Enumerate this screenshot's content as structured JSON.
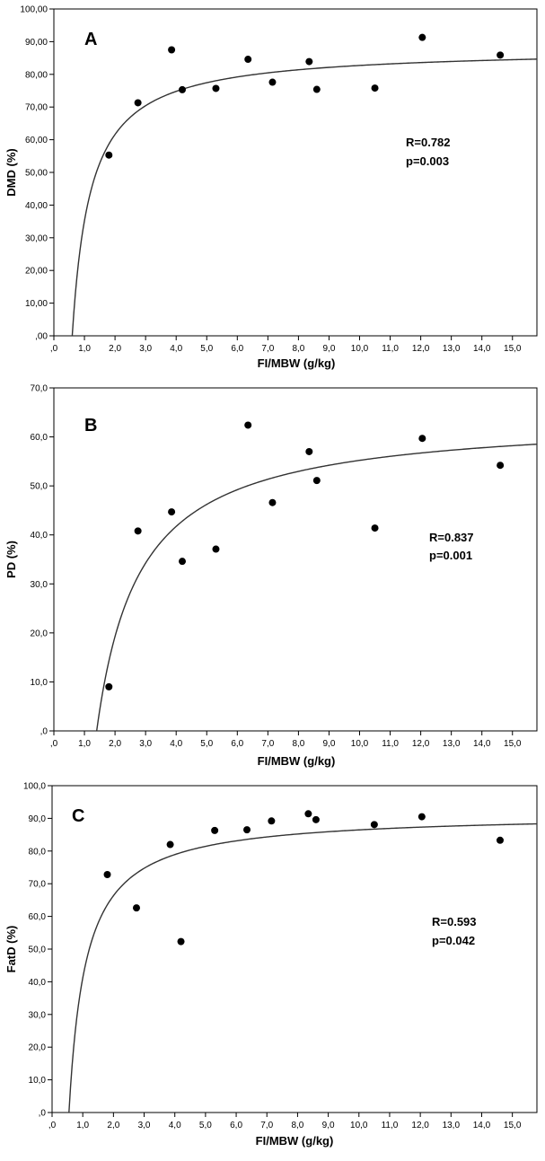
{
  "chart_data": [
    {
      "type": "scatter",
      "panel": "A",
      "ylabel": "DMD (%)",
      "xlabel": "FI/MBW (g/kg)",
      "xlim": [
        0,
        15.8
      ],
      "ylim": [
        0,
        100
      ],
      "x_ticks": [
        ",0",
        "1,0",
        "2,0",
        "3,0",
        "4,0",
        "5,0",
        "6,0",
        "7,0",
        "8,0",
        "9,0",
        "10,0",
        "11,0",
        "12,0",
        "13,0",
        "14,0",
        "15,0"
      ],
      "y_ticks": [
        ",00",
        "10,00",
        "20,00",
        "30,00",
        "40,00",
        "50,00",
        "60,00",
        "70,00",
        "80,00",
        "90,00",
        "100,00"
      ],
      "y_tick_values": [
        0,
        10,
        20,
        30,
        40,
        50,
        60,
        70,
        80,
        90,
        100
      ],
      "points": [
        {
          "x": 1.8,
          "y": 55.3
        },
        {
          "x": 2.75,
          "y": 71.3
        },
        {
          "x": 3.85,
          "y": 87.5
        },
        {
          "x": 4.2,
          "y": 75.3
        },
        {
          "x": 5.3,
          "y": 75.7
        },
        {
          "x": 6.35,
          "y": 84.6
        },
        {
          "x": 7.15,
          "y": 77.6
        },
        {
          "x": 8.35,
          "y": 83.9
        },
        {
          "x": 8.6,
          "y": 75.4
        },
        {
          "x": 10.5,
          "y": 75.8
        },
        {
          "x": 12.05,
          "y": 91.3
        },
        {
          "x": 14.6,
          "y": 85.9
        }
      ],
      "fit": {
        "asymptote": 88.0,
        "x0": 0.6
      },
      "annotation": [
        "R=0.782",
        "p=0.003"
      ]
    },
    {
      "type": "scatter",
      "panel": "B",
      "ylabel": "PD (%)",
      "xlabel": "FI/MBW (g/kg)",
      "xlim": [
        0,
        15.8
      ],
      "ylim": [
        0,
        70
      ],
      "x_ticks": [
        ",0",
        "1,0",
        "2,0",
        "3,0",
        "4,0",
        "5,0",
        "6,0",
        "7,0",
        "8,0",
        "9,0",
        "10,0",
        "11,0",
        "12,0",
        "13,0",
        "14,0",
        "15,0"
      ],
      "y_ticks": [
        ",0",
        "10,0",
        "20,0",
        "30,0",
        "40,0",
        "50,0",
        "60,0",
        "70,0"
      ],
      "y_tick_values": [
        0,
        10,
        20,
        30,
        40,
        50,
        60,
        70
      ],
      "points": [
        {
          "x": 1.8,
          "y": 9.0
        },
        {
          "x": 2.75,
          "y": 40.8
        },
        {
          "x": 3.85,
          "y": 44.7
        },
        {
          "x": 4.2,
          "y": 34.6
        },
        {
          "x": 5.3,
          "y": 37.1
        },
        {
          "x": 6.35,
          "y": 62.4
        },
        {
          "x": 7.15,
          "y": 46.6
        },
        {
          "x": 8.35,
          "y": 57.0
        },
        {
          "x": 8.6,
          "y": 51.1
        },
        {
          "x": 10.5,
          "y": 41.4
        },
        {
          "x": 12.05,
          "y": 59.7
        },
        {
          "x": 14.6,
          "y": 54.2
        }
      ],
      "fit": {
        "asymptote": 64.2,
        "x0": 1.4
      },
      "annotation": [
        "R=0.837",
        "p=0.001"
      ]
    },
    {
      "type": "scatter",
      "panel": "C",
      "ylabel": "FatD (%)",
      "xlabel": "FI/MBW (g/kg)",
      "xlim": [
        0,
        15.8
      ],
      "ylim": [
        0,
        100
      ],
      "x_ticks": [
        ",0",
        "1,0",
        "2,0",
        "3,0",
        "4,0",
        "5,0",
        "6,0",
        "7,0",
        "8,0",
        "9,0",
        "10,0",
        "11,0",
        "12,0",
        "13,0",
        "14,0",
        "15,0"
      ],
      "y_ticks": [
        ",0",
        "10,0",
        "20,0",
        "30,0",
        "40,0",
        "50,0",
        "60,0",
        "70,0",
        "80,0",
        "90,0",
        "100,0"
      ],
      "y_tick_values": [
        0,
        10,
        20,
        30,
        40,
        50,
        60,
        70,
        80,
        90,
        100
      ],
      "points": [
        {
          "x": 1.8,
          "y": 72.8
        },
        {
          "x": 2.75,
          "y": 62.6
        },
        {
          "x": 3.85,
          "y": 82.0
        },
        {
          "x": 4.2,
          "y": 52.3
        },
        {
          "x": 5.3,
          "y": 86.3
        },
        {
          "x": 6.35,
          "y": 86.5
        },
        {
          "x": 7.15,
          "y": 89.2
        },
        {
          "x": 8.35,
          "y": 91.4
        },
        {
          "x": 8.6,
          "y": 89.6
        },
        {
          "x": 10.5,
          "y": 88.1
        },
        {
          "x": 12.05,
          "y": 90.5
        },
        {
          "x": 14.6,
          "y": 83.3
        }
      ],
      "fit": {
        "asymptote": 91.5,
        "x0": 0.55
      },
      "annotation": [
        "R=0.593",
        "p=0.042"
      ]
    }
  ]
}
